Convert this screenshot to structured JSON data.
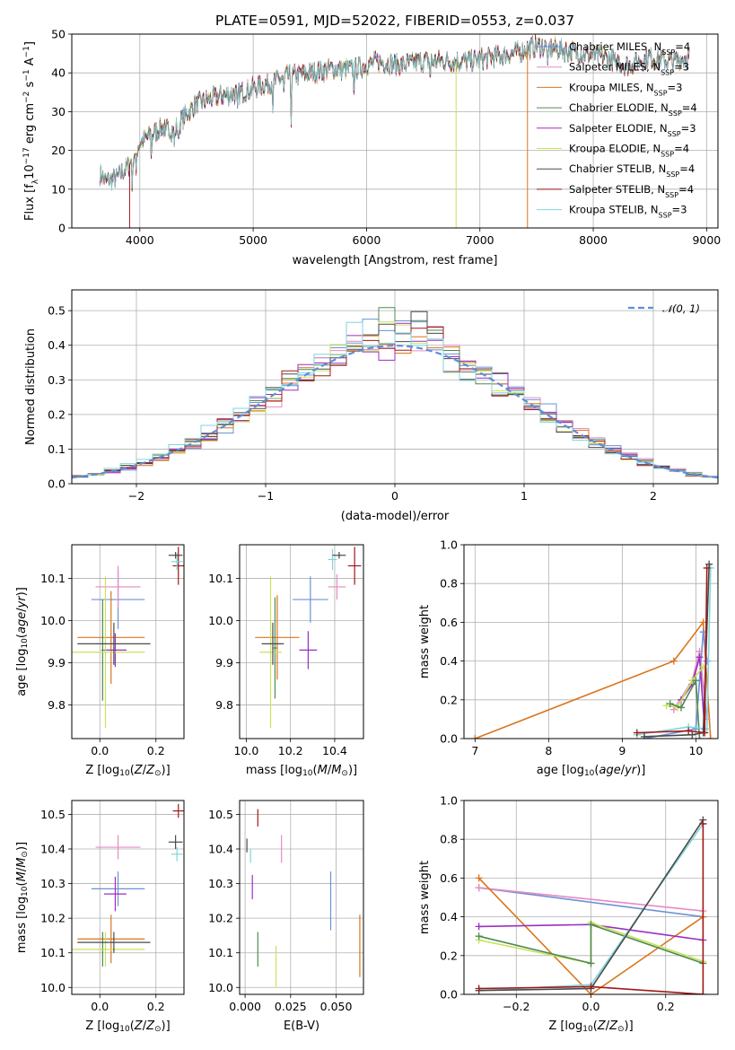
{
  "chart_data": [
    {
      "id": "spectrum",
      "type": "line",
      "title": "PLATE=0591, MJD=52022, FIBERID=0553, z=0.037",
      "xlabel": "wavelength [Angstrom, rest frame]",
      "ylabel_parts": [
        "Flux [f",
        "λ",
        "10",
        "−17",
        " erg cm",
        "−2",
        " s",
        "−1",
        " A",
        "−1",
        "]"
      ],
      "xlim": [
        3400,
        9100
      ],
      "ylim": [
        0,
        50
      ],
      "xticks": [
        4000,
        5000,
        6000,
        7000,
        8000,
        9000
      ],
      "yticks": [
        0,
        10,
        20,
        30,
        40,
        50
      ],
      "legend_loc": "upper right",
      "legend": [
        {
          "pre": "Chabrier MILES, N",
          "sub": "SSP",
          "post": "=4",
          "color": "#6d90d8"
        },
        {
          "pre": "Salpeter MILES, N",
          "sub": "SSP",
          "post": "=3",
          "color": "#e68ac3"
        },
        {
          "pre": "Kroupa MILES, N",
          "sub": "SSP",
          "post": "=3",
          "color": "#d9751c"
        },
        {
          "pre": "Chabrier ELODIE, N",
          "sub": "SSP",
          "post": "=4",
          "color": "#4f8a4f"
        },
        {
          "pre": "Salpeter ELODIE, N",
          "sub": "SSP",
          "post": "=3",
          "color": "#9b2fbf"
        },
        {
          "pre": "Kroupa ELODIE, N",
          "sub": "SSP",
          "post": "=4",
          "color": "#c8e25a"
        },
        {
          "pre": "Chabrier STELIB, N",
          "sub": "SSP",
          "post": "=4",
          "color": "#4a4a4a"
        },
        {
          "pre": "Salpeter STELIB, N",
          "sub": "SSP",
          "post": "=4",
          "color": "#a11818"
        },
        {
          "pre": "Kroupa STELIB, N",
          "sub": "SSP",
          "post": "=3",
          "color": "#7fd6dc"
        }
      ],
      "continuum": {
        "x": [
          3650,
          3700,
          3800,
          3900,
          4000,
          4100,
          4200,
          4300,
          4400,
          4500,
          4700,
          4900,
          5100,
          5300,
          5500,
          5700,
          5900,
          6100,
          6300,
          6500,
          6700,
          6900,
          7100,
          7300,
          7500,
          7700,
          7900,
          8100,
          8300,
          8500,
          8700,
          8850
        ],
        "y": [
          14,
          12,
          13,
          16,
          22,
          24,
          26,
          25,
          29,
          32,
          34,
          35,
          37,
          39,
          40,
          41,
          41,
          43,
          42,
          43,
          43,
          43,
          44,
          45,
          47,
          46,
          45,
          44,
          42,
          44,
          43,
          44
        ]
      },
      "model_cutoffs": [
        {
          "color": "#c8e25a",
          "x": 6790
        },
        {
          "color": "#d9751c",
          "x": 7420
        },
        {
          "color": "#a11818",
          "x": 3910
        }
      ]
    },
    {
      "id": "residuals",
      "type": "histogram",
      "xlabel": "(data-model)/error",
      "ylabel": "Normed distribution",
      "xlim": [
        -2.5,
        2.5
      ],
      "ylim": [
        0,
        0.56
      ],
      "xticks": [
        -2,
        -1,
        0,
        1,
        2
      ],
      "yticks": [
        0,
        0.1,
        0.2,
        0.3,
        0.4,
        0.5
      ],
      "bin_width": 0.125,
      "legend": "𝒩(0, 1)",
      "legend_loc": "upper right",
      "gaussian_color": "#5b8fd9",
      "series_colors": [
        "#6d90d8",
        "#e68ac3",
        "#d9751c",
        "#4f8a4f",
        "#9b2fbf",
        "#c8e25a",
        "#4a4a4a",
        "#a11818",
        "#7fd6dc"
      ]
    },
    {
      "id": "age-vs-Z",
      "type": "errorbar",
      "xlabel": "Z [log10(Z/Z☉)]",
      "ylabel": "age  [log10(age/yr)]",
      "xlim": [
        -0.1,
        0.3
      ],
      "ylim": [
        9.72,
        10.18
      ],
      "xticks": [
        0.0,
        0.2
      ],
      "yticks": [
        9.8,
        9.9,
        10.0,
        10.1
      ],
      "points": [
        {
          "color": "#6d90d8",
          "x": 0.065,
          "xerr": 0.095,
          "y": 10.05,
          "yerr": 0.07
        },
        {
          "color": "#e68ac3",
          "x": 0.065,
          "xerr": 0.08,
          "y": 10.08,
          "yerr": 0.05
        },
        {
          "color": "#d9751c",
          "x": 0.04,
          "xerr": 0.12,
          "y": 9.96,
          "yerr": 0.11
        },
        {
          "color": "#4f8a4f",
          "x": 0.01,
          "xerr": 0.005,
          "y": 9.93,
          "yerr": 0.12
        },
        {
          "color": "#9b2fbf",
          "x": 0.055,
          "xerr": 0.04,
          "y": 9.93,
          "yerr": 0.04
        },
        {
          "color": "#c8e25a",
          "x": 0.02,
          "xerr": 0.14,
          "y": 9.925,
          "yerr": 0.18
        },
        {
          "color": "#4a4a4a",
          "x": 0.05,
          "xerr": 0.13,
          "y": 9.945,
          "yerr": 0.05
        },
        {
          "color": "#a11818",
          "x": 0.28,
          "xerr": 0.02,
          "y": 10.13,
          "yerr": 0.045
        },
        {
          "color": "#7fd6dc",
          "x": 0.275,
          "xerr": 0.02,
          "y": 10.14,
          "yerr": 0.02
        },
        {
          "color": "#4a4a4a",
          "x": 0.27,
          "xerr": 0.025,
          "y": 10.155,
          "yerr": 0.008
        }
      ]
    },
    {
      "id": "age-vs-mass",
      "type": "errorbar",
      "xlabel": "mass [log10(M/M☉)]",
      "xlim": [
        9.97,
        10.53
      ],
      "ylim": [
        9.72,
        10.18
      ],
      "xticks": [
        10.0,
        10.2,
        10.4
      ],
      "yticks": [
        9.8,
        9.9,
        10.0,
        10.1
      ],
      "points": [
        {
          "color": "#6d90d8",
          "x": 10.29,
          "xerr": 0.08,
          "y": 10.05,
          "yerr": 0.055
        },
        {
          "color": "#e68ac3",
          "x": 10.41,
          "xerr": 0.04,
          "y": 10.08,
          "yerr": 0.03
        },
        {
          "color": "#d9751c",
          "x": 10.14,
          "xerr": 0.1,
          "y": 9.96,
          "yerr": 0.1
        },
        {
          "color": "#4f8a4f",
          "x": 10.13,
          "xerr": 0.01,
          "y": 9.935,
          "yerr": 0.12
        },
        {
          "color": "#9b2fbf",
          "x": 10.28,
          "xerr": 0.04,
          "y": 9.93,
          "yerr": 0.045
        },
        {
          "color": "#c8e25a",
          "x": 10.11,
          "xerr": 0.05,
          "y": 9.925,
          "yerr": 0.18
        },
        {
          "color": "#4a4a4a",
          "x": 10.12,
          "xerr": 0.05,
          "y": 9.945,
          "yerr": 0.05
        },
        {
          "color": "#a11818",
          "x": 10.49,
          "xerr": 0.03,
          "y": 10.13,
          "yerr": 0.045
        },
        {
          "color": "#7fd6dc",
          "x": 10.39,
          "xerr": 0.02,
          "y": 10.145,
          "yerr": 0.025
        },
        {
          "color": "#4a4a4a",
          "x": 10.42,
          "xerr": 0.03,
          "y": 10.155,
          "yerr": 0.008
        }
      ]
    },
    {
      "id": "weight-vs-age",
      "type": "line",
      "xlabel": "age  [log10(age/yr)]",
      "ylabel": "mass weight",
      "xlim": [
        6.85,
        10.3
      ],
      "ylim": [
        0,
        1.0
      ],
      "xticks": [
        7,
        8,
        9,
        10
      ],
      "yticks": [
        0.0,
        0.2,
        0.4,
        0.6,
        0.8,
        1.0
      ],
      "series": [
        {
          "color": "#d9751c",
          "x": [
            7.0,
            9.7,
            10.1,
            10.2
          ],
          "y": [
            0.0,
            0.4,
            0.6,
            0.0
          ]
        },
        {
          "color": "#6d90d8",
          "x": [
            9.3,
            10.0,
            10.1,
            10.15
          ],
          "y": [
            0.0,
            0.05,
            0.55,
            0.4
          ]
        },
        {
          "color": "#e68ac3",
          "x": [
            9.7,
            9.95,
            10.05,
            10.15
          ],
          "y": [
            0.15,
            0.3,
            0.45,
            0.1
          ]
        },
        {
          "color": "#9b2fbf",
          "x": [
            9.8,
            9.95,
            10.05,
            10.12
          ],
          "y": [
            0.2,
            0.28,
            0.42,
            0.05
          ]
        },
        {
          "color": "#c8e25a",
          "x": [
            9.6,
            9.75,
            9.95,
            10.1
          ],
          "y": [
            0.17,
            0.16,
            0.3,
            0.37
          ]
        },
        {
          "color": "#4f8a4f",
          "x": [
            9.65,
            9.8,
            10.0,
            10.05
          ],
          "y": [
            0.18,
            0.16,
            0.3,
            0.0
          ]
        },
        {
          "color": "#7fd6dc",
          "x": [
            9.2,
            9.9,
            10.15,
            10.2
          ],
          "y": [
            0.02,
            0.06,
            0.05,
            0.88
          ]
        },
        {
          "color": "#4a4a4a",
          "x": [
            9.3,
            9.95,
            10.1,
            10.18
          ],
          "y": [
            0.01,
            0.02,
            0.03,
            0.9
          ]
        },
        {
          "color": "#a11818",
          "x": [
            9.2,
            9.9,
            10.12,
            10.15
          ],
          "y": [
            0.03,
            0.04,
            0.03,
            0.88
          ]
        }
      ]
    },
    {
      "id": "mass-vs-Z",
      "type": "errorbar",
      "xlabel": "Z [log10(Z/Z☉)]",
      "ylabel": "mass [log10(M/M☉)]",
      "xlim": [
        -0.1,
        0.3
      ],
      "ylim": [
        9.98,
        10.54
      ],
      "xticks": [
        0.0,
        0.2
      ],
      "yticks": [
        10.0,
        10.1,
        10.2,
        10.3,
        10.4,
        10.5
      ],
      "points": [
        {
          "color": "#6d90d8",
          "x": 0.065,
          "xerr": 0.095,
          "y": 10.285,
          "yerr": 0.05
        },
        {
          "color": "#e68ac3",
          "x": 0.065,
          "xerr": 0.08,
          "y": 10.405,
          "yerr": 0.035
        },
        {
          "color": "#d9751c",
          "x": 0.04,
          "xerr": 0.12,
          "y": 10.14,
          "yerr": 0.07
        },
        {
          "color": "#4f8a4f",
          "x": 0.01,
          "xerr": 0.005,
          "y": 10.11,
          "yerr": 0.05
        },
        {
          "color": "#9b2fbf",
          "x": 0.055,
          "xerr": 0.04,
          "y": 10.27,
          "yerr": 0.05
        },
        {
          "color": "#c8e25a",
          "x": 0.02,
          "xerr": 0.14,
          "y": 10.11,
          "yerr": 0.05
        },
        {
          "color": "#4a4a4a",
          "x": 0.05,
          "xerr": 0.13,
          "y": 10.13,
          "yerr": 0.03
        },
        {
          "color": "#a11818",
          "x": 0.28,
          "xerr": 0.02,
          "y": 10.51,
          "yerr": 0.02
        },
        {
          "color": "#7fd6dc",
          "x": 0.275,
          "xerr": 0.02,
          "y": 10.385,
          "yerr": 0.02
        },
        {
          "color": "#4a4a4a",
          "x": 0.27,
          "xerr": 0.025,
          "y": 10.42,
          "yerr": 0.02
        }
      ]
    },
    {
      "id": "mass-vs-ebv",
      "type": "errorbar",
      "xlabel": "E(B-V)",
      "xlim": [
        -0.003,
        0.065
      ],
      "ylim": [
        9.98,
        10.54
      ],
      "xticks": [
        0.0,
        0.025,
        0.05
      ],
      "xticklabels": [
        "0.000",
        "0.025",
        "0.050"
      ],
      "yticks": [
        10.0,
        10.1,
        10.2,
        10.3,
        10.4,
        10.5
      ],
      "points": [
        {
          "color": "#6d90d8",
          "x": 0.047,
          "xerr": 0,
          "y": 10.25,
          "yerr": 0.085
        },
        {
          "color": "#e68ac3",
          "x": 0.02,
          "xerr": 0,
          "y": 10.4,
          "yerr": 0.04
        },
        {
          "color": "#d9751c",
          "x": 0.063,
          "xerr": 0,
          "y": 10.12,
          "yerr": 0.09
        },
        {
          "color": "#4f8a4f",
          "x": 0.007,
          "xerr": 0,
          "y": 10.11,
          "yerr": 0.05
        },
        {
          "color": "#9b2fbf",
          "x": 0.004,
          "xerr": 0,
          "y": 10.29,
          "yerr": 0.035
        },
        {
          "color": "#c8e25a",
          "x": 0.017,
          "xerr": 0,
          "y": 10.06,
          "yerr": 0.06
        },
        {
          "color": "#4a4a4a",
          "x": 0.001,
          "xerr": 0,
          "y": 10.41,
          "yerr": 0.02
        },
        {
          "color": "#a11818",
          "x": 0.007,
          "xerr": 0,
          "y": 10.49,
          "yerr": 0.025
        },
        {
          "color": "#7fd6dc",
          "x": 0.003,
          "xerr": 0,
          "y": 10.38,
          "yerr": 0.02
        }
      ]
    },
    {
      "id": "weight-vs-Z",
      "type": "line",
      "xlabel": "Z [log10(Z/Z☉)]",
      "ylabel": "mass weight",
      "xlim": [
        -0.34,
        0.34
      ],
      "ylim": [
        0,
        1.0
      ],
      "xticks": [
        -0.2,
        0.0,
        0.2
      ],
      "yticks": [
        0.0,
        0.2,
        0.4,
        0.6,
        0.8,
        1.0
      ],
      "series": [
        {
          "color": "#6d90d8",
          "x": [
            -0.3,
            0.3
          ],
          "y": [
            0.55,
            0.4
          ]
        },
        {
          "color": "#e68ac3",
          "x": [
            -0.3,
            0.3
          ],
          "y": [
            0.55,
            0.43
          ]
        },
        {
          "color": "#d9751c",
          "x": [
            -0.3,
            0.0,
            0.3
          ],
          "y": [
            0.6,
            0.0,
            0.4
          ]
        },
        {
          "color": "#9b2fbf",
          "x": [
            -0.3,
            0.0,
            0.3
          ],
          "y": [
            0.35,
            0.36,
            0.28
          ]
        },
        {
          "color": "#c8e25a",
          "x": [
            -0.3,
            0.0,
            0.0,
            0.3
          ],
          "y": [
            0.28,
            0.16,
            0.37,
            0.17
          ]
        },
        {
          "color": "#4f8a4f",
          "x": [
            -0.3,
            0.0,
            0.0,
            0.3
          ],
          "y": [
            0.3,
            0.16,
            0.36,
            0.16
          ]
        },
        {
          "color": "#7fd6dc",
          "x": [
            -0.3,
            0.0,
            0.3
          ],
          "y": [
            0.02,
            0.05,
            0.88
          ]
        },
        {
          "color": "#4a4a4a",
          "x": [
            -0.3,
            0.0,
            0.3
          ],
          "y": [
            0.02,
            0.03,
            0.9
          ]
        },
        {
          "color": "#a11818",
          "x": [
            -0.3,
            0.0,
            0.3,
            0.3
          ],
          "y": [
            0.03,
            0.04,
            0.0,
            0.88
          ]
        }
      ]
    }
  ]
}
